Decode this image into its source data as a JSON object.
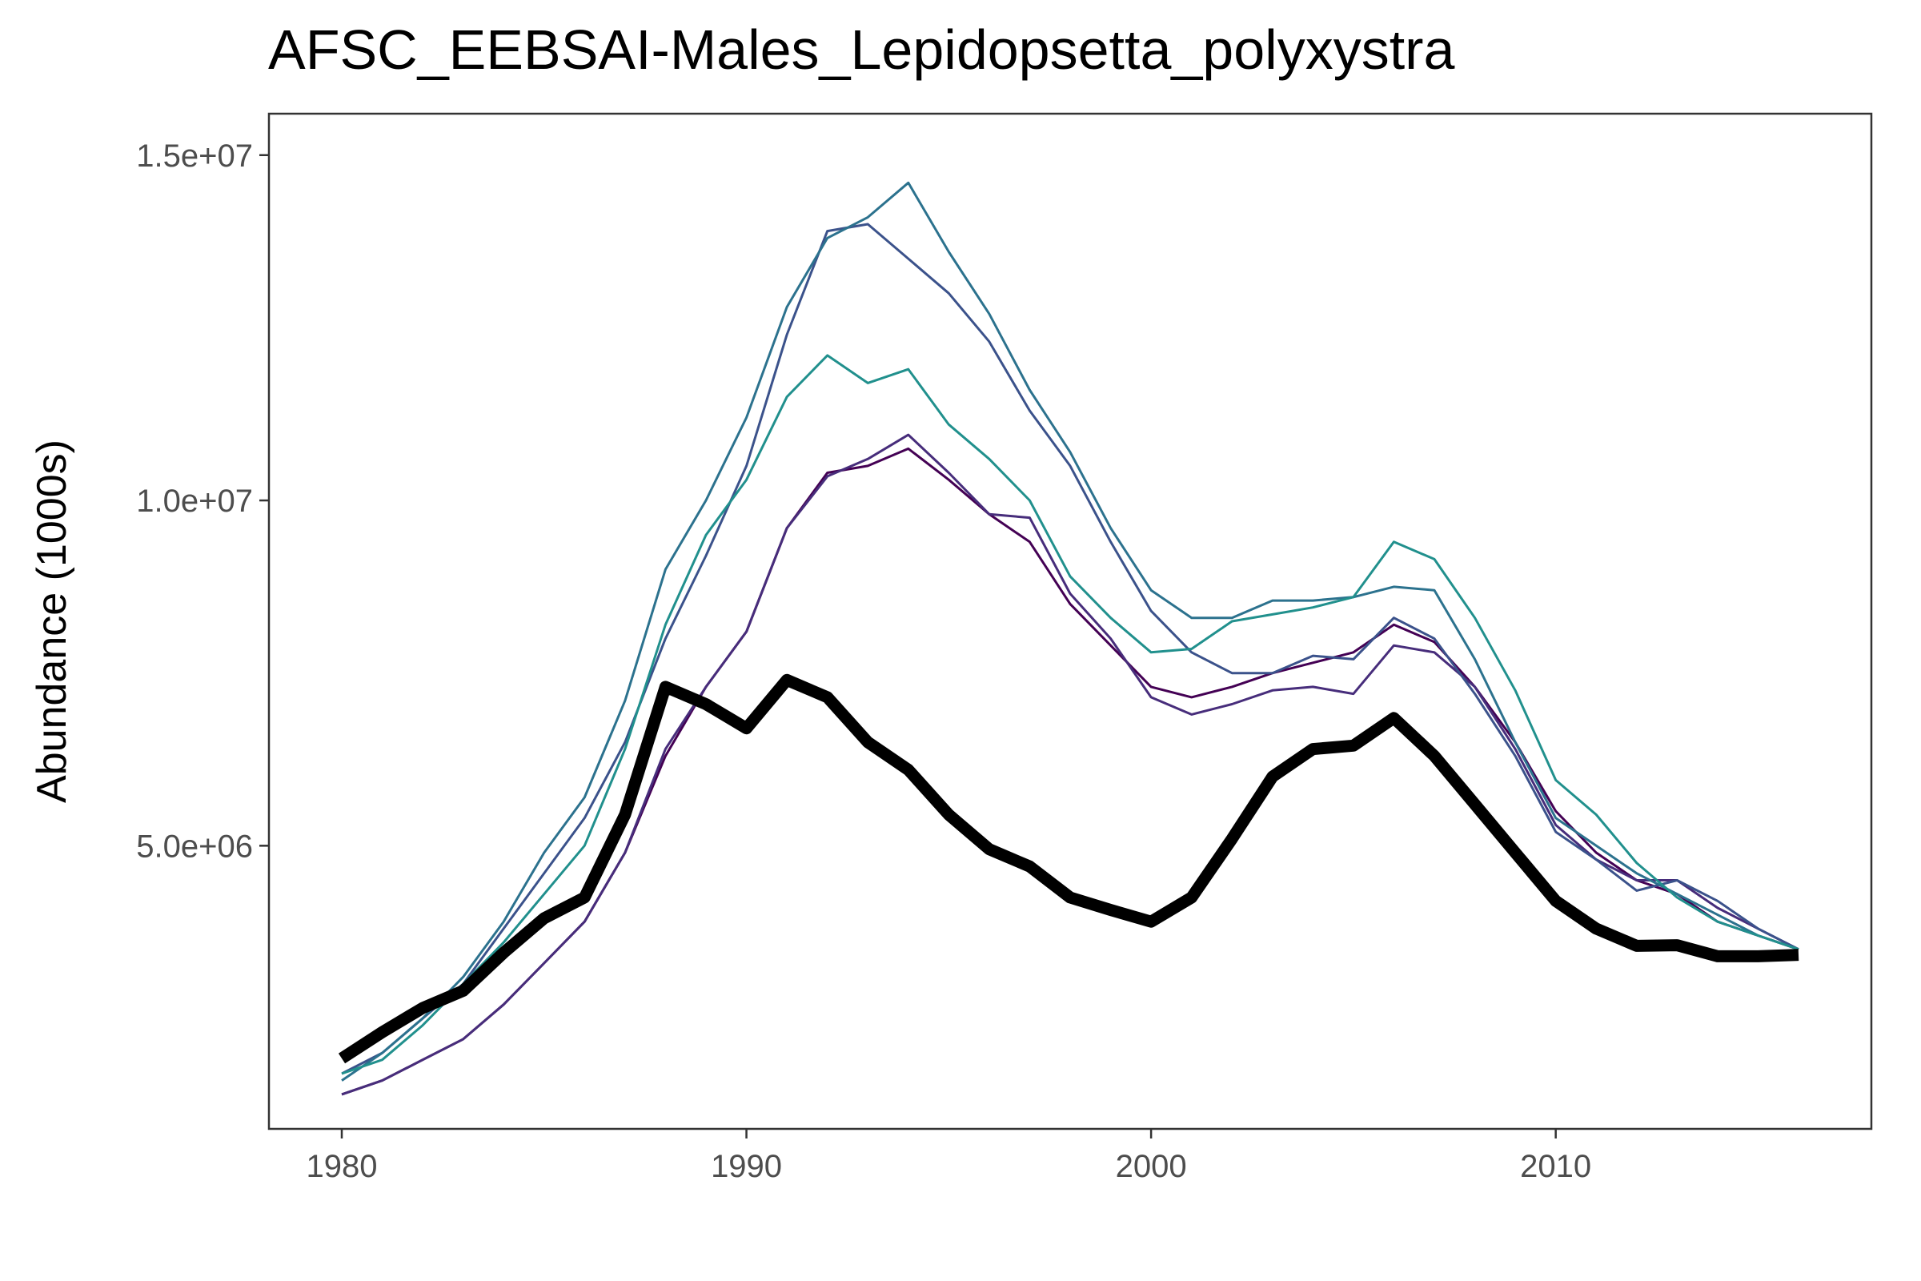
{
  "chart_data": {
    "type": "line",
    "title": "AFSC_EEBSAI-Males_Lepidopsetta_polyxystra",
    "xlabel": "",
    "ylabel": "Abundance (1000s)",
    "xlim": [
      1978.2,
      2017.8
    ],
    "ylim": [
      900000,
      15600000
    ],
    "x_ticks": [
      1980,
      1990,
      2000,
      2010
    ],
    "x_tick_labels": [
      "1980",
      "1990",
      "2000",
      "2010"
    ],
    "y_ticks": [
      5000000,
      10000000,
      15000000
    ],
    "y_tick_labels": [
      "5.0e+06",
      "1.0e+07",
      "1.5e+07"
    ],
    "grid": false,
    "legend": "none",
    "x": [
      1980,
      1981,
      1982,
      1983,
      1984,
      1985,
      1986,
      1987,
      1988,
      1989,
      1990,
      1991,
      1992,
      1993,
      1994,
      1995,
      1996,
      1997,
      1998,
      1999,
      2000,
      2001,
      2002,
      2003,
      2004,
      2005,
      2006,
      2007,
      2008,
      2009,
      2010,
      2011,
      2012,
      2013,
      2014,
      2015,
      2016
    ],
    "series": [
      {
        "color": "#440154",
        "width": 3,
        "values": [
          1400000,
          1600000,
          1900000,
          2200000,
          2700000,
          3300000,
          3900000,
          4900000,
          6300000,
          7300000,
          8100000,
          9600000,
          10400000,
          10500000,
          10750000,
          10300000,
          9800000,
          9400000,
          8500000,
          7900000,
          7300000,
          7150000,
          7300000,
          7500000,
          7650000,
          7800000,
          8200000,
          7950000,
          7300000,
          6500000,
          5500000,
          4900000,
          4500000,
          4300000,
          3900000,
          3700000,
          3500000
        ]
      },
      {
        "color": "#472d7b",
        "width": 3,
        "values": [
          1400000,
          1600000,
          1900000,
          2200000,
          2700000,
          3300000,
          3900000,
          4900000,
          6400000,
          7300000,
          8100000,
          9600000,
          10350000,
          10600000,
          10950000,
          10400000,
          9800000,
          9750000,
          8650000,
          8000000,
          7150000,
          6900000,
          7050000,
          7250000,
          7300000,
          7200000,
          7900000,
          7800000,
          7300000,
          6400000,
          5300000,
          4800000,
          4500000,
          4500000,
          4100000,
          3800000,
          3500000
        ]
      },
      {
        "color": "#3b528b",
        "width": 3,
        "values": [
          1700000,
          2000000,
          2500000,
          3000000,
          3800000,
          4600000,
          5400000,
          6500000,
          8000000,
          9200000,
          10500000,
          12400000,
          13900000,
          14000000,
          13500000,
          13000000,
          12300000,
          11300000,
          10500000,
          9400000,
          8400000,
          7800000,
          7500000,
          7500000,
          7750000,
          7700000,
          8300000,
          8000000,
          7200000,
          6300000,
          5200000,
          4800000,
          4350000,
          4500000,
          4200000,
          3800000,
          3500000
        ]
      },
      {
        "color": "#2c728e",
        "width": 3,
        "values": [
          1600000,
          2000000,
          2500000,
          3100000,
          3900000,
          4900000,
          5700000,
          7100000,
          9000000,
          10000000,
          11200000,
          12800000,
          13800000,
          14100000,
          14600000,
          13600000,
          12700000,
          11600000,
          10700000,
          9600000,
          8700000,
          8300000,
          8300000,
          8550000,
          8550000,
          8600000,
          8750000,
          8700000,
          7700000,
          6500000,
          5400000,
          5000000,
          4600000,
          4300000,
          4000000,
          3700000,
          3500000
        ]
      },
      {
        "color": "#21908d",
        "width": 3,
        "values": [
          1700000,
          1900000,
          2400000,
          3000000,
          3600000,
          4300000,
          5000000,
          6400000,
          8200000,
          9500000,
          10300000,
          11500000,
          12100000,
          11700000,
          11900000,
          11100000,
          10600000,
          10000000,
          8900000,
          8300000,
          7800000,
          7850000,
          8250000,
          8350000,
          8450000,
          8600000,
          9400000,
          9150000,
          8300000,
          7250000,
          5950000,
          5450000,
          4750000,
          4250000,
          3900000,
          3700000,
          3500000
        ]
      },
      {
        "color": "#000000",
        "width": 15,
        "values": [
          1920000,
          2300000,
          2650000,
          2900000,
          3450000,
          3950000,
          4250000,
          5450000,
          7300000,
          7050000,
          6700000,
          7400000,
          7150000,
          6500000,
          6100000,
          5450000,
          4950000,
          4700000,
          4250000,
          4070000,
          3900000,
          4250000,
          5100000,
          6000000,
          6400000,
          6450000,
          6850000,
          6300000,
          5600000,
          4900000,
          4200000,
          3800000,
          3550000,
          3560000,
          3400000,
          3400000,
          3420000
        ]
      }
    ]
  }
}
